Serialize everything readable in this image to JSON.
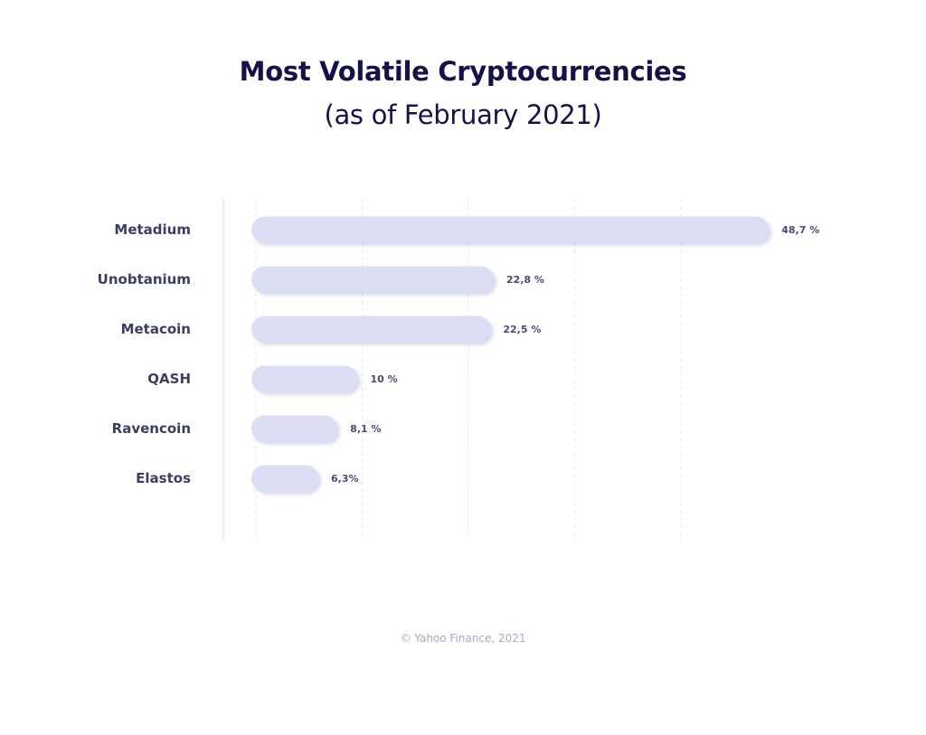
{
  "header": {
    "title": "Most Volatile Cryptocurrencies",
    "subtitle": "(as of February 2021)"
  },
  "footer": {
    "source": "© Yahoo Finance, 2021"
  },
  "colors": {
    "title": "#15124a",
    "bar": "#dcdef3",
    "bar_shadow": "#c3c6e3",
    "label": "#3c3d63",
    "value_label": "#4a4c78",
    "grid": "#e6e7f0",
    "axis": "#eeeff5",
    "source": "#a6a9c4"
  },
  "chart_data": {
    "type": "bar",
    "orientation": "horizontal",
    "title": "Most Volatile Cryptocurrencies",
    "subtitle": "(as of February 2021)",
    "categories": [
      "Metadium",
      "Unobtanium",
      "Metacoin",
      "QASH",
      "Ravencoin",
      "Elastos"
    ],
    "values": [
      48.7,
      22.8,
      22.5,
      10,
      8.1,
      6.3
    ],
    "value_labels": [
      "48,7 %",
      "22,8 %",
      "22,5 %",
      "10 %",
      "8,1 %",
      "6,3%"
    ],
    "xlim": [
      0,
      50
    ],
    "grid": true,
    "legend": "none"
  }
}
